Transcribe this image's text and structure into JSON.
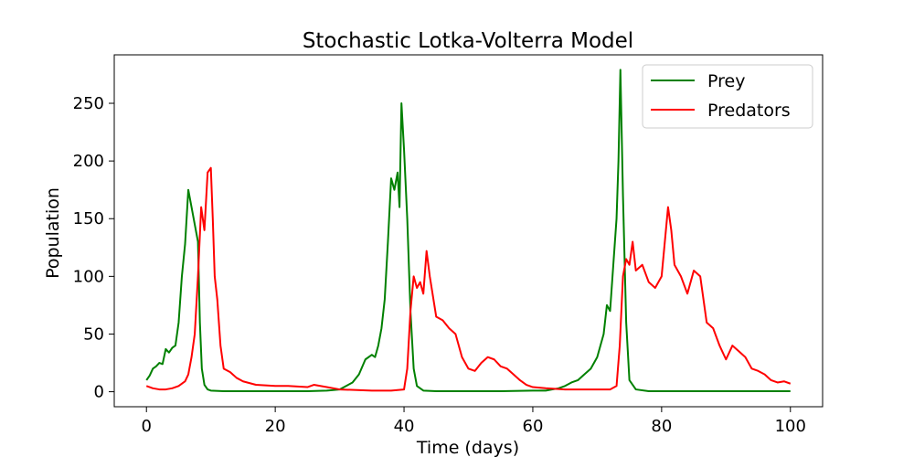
{
  "chart_data": {
    "type": "line",
    "title": "Stochastic Lotka-Volterra Model",
    "xlabel": "Time (days)",
    "ylabel": "Population",
    "xlim": [
      -5,
      105
    ],
    "ylim": [
      -13,
      292
    ],
    "xticks": [
      0,
      20,
      40,
      60,
      80,
      100
    ],
    "yticks": [
      0,
      50,
      100,
      150,
      200,
      250
    ],
    "grid": false,
    "legend_position": "top-right",
    "series": [
      {
        "name": "Prey",
        "color": "#008000",
        "points": [
          [
            0,
            10
          ],
          [
            0.5,
            14
          ],
          [
            1,
            20
          ],
          [
            1.5,
            22
          ],
          [
            2,
            25
          ],
          [
            2.5,
            24
          ],
          [
            3,
            37
          ],
          [
            3.5,
            34
          ],
          [
            4,
            38
          ],
          [
            4.5,
            40
          ],
          [
            5,
            60
          ],
          [
            5.5,
            100
          ],
          [
            6,
            128
          ],
          [
            6.5,
            175
          ],
          [
            7,
            160
          ],
          [
            7.5,
            145
          ],
          [
            8,
            130
          ],
          [
            8.3,
            60
          ],
          [
            8.6,
            20
          ],
          [
            9,
            6
          ],
          [
            9.5,
            2
          ],
          [
            10,
            1
          ],
          [
            12,
            0.5
          ],
          [
            15,
            0.5
          ],
          [
            20,
            0.5
          ],
          [
            25,
            0.5
          ],
          [
            28,
            1
          ],
          [
            30,
            2
          ],
          [
            32,
            8
          ],
          [
            33,
            15
          ],
          [
            34,
            28
          ],
          [
            35,
            32
          ],
          [
            35.5,
            30
          ],
          [
            36,
            40
          ],
          [
            36.5,
            55
          ],
          [
            37,
            80
          ],
          [
            37.5,
            130
          ],
          [
            38,
            185
          ],
          [
            38.5,
            175
          ],
          [
            39,
            190
          ],
          [
            39.3,
            160
          ],
          [
            39.6,
            250
          ],
          [
            40,
            210
          ],
          [
            40.5,
            150
          ],
          [
            41,
            70
          ],
          [
            41.5,
            20
          ],
          [
            42,
            5
          ],
          [
            43,
            1
          ],
          [
            45,
            0.5
          ],
          [
            50,
            0.5
          ],
          [
            55,
            0.5
          ],
          [
            60,
            1
          ],
          [
            62,
            1
          ],
          [
            64,
            3
          ],
          [
            65,
            5
          ],
          [
            66,
            8
          ],
          [
            67,
            10
          ],
          [
            68,
            15
          ],
          [
            69,
            20
          ],
          [
            70,
            30
          ],
          [
            71,
            50
          ],
          [
            71.5,
            75
          ],
          [
            72,
            70
          ],
          [
            72.5,
            110
          ],
          [
            73,
            150
          ],
          [
            73.3,
            200
          ],
          [
            73.6,
            279
          ],
          [
            74,
            170
          ],
          [
            74.5,
            60
          ],
          [
            75,
            10
          ],
          [
            76,
            2
          ],
          [
            78,
            0.5
          ],
          [
            80,
            0.5
          ],
          [
            85,
            0.5
          ],
          [
            90,
            0.5
          ],
          [
            95,
            0.5
          ],
          [
            100,
            0.5
          ]
        ]
      },
      {
        "name": "Predators",
        "color": "#ff0000",
        "points": [
          [
            0,
            5
          ],
          [
            1,
            3
          ],
          [
            2,
            2
          ],
          [
            3,
            2
          ],
          [
            4,
            3
          ],
          [
            5,
            5
          ],
          [
            6,
            9
          ],
          [
            6.5,
            15
          ],
          [
            7,
            30
          ],
          [
            7.5,
            50
          ],
          [
            8,
            100
          ],
          [
            8.5,
            160
          ],
          [
            9,
            140
          ],
          [
            9.5,
            190
          ],
          [
            10,
            194
          ],
          [
            10.3,
            150
          ],
          [
            10.6,
            100
          ],
          [
            11,
            80
          ],
          [
            11.5,
            40
          ],
          [
            12,
            20
          ],
          [
            13,
            17
          ],
          [
            14,
            12
          ],
          [
            15,
            9
          ],
          [
            17,
            6
          ],
          [
            20,
            5
          ],
          [
            22,
            5
          ],
          [
            25,
            4
          ],
          [
            26,
            6
          ],
          [
            28,
            4
          ],
          [
            30,
            2
          ],
          [
            35,
            1
          ],
          [
            38,
            1
          ],
          [
            40,
            2
          ],
          [
            40.5,
            20
          ],
          [
            41,
            70
          ],
          [
            41.5,
            100
          ],
          [
            42,
            90
          ],
          [
            42.5,
            95
          ],
          [
            43,
            85
          ],
          [
            43.5,
            122
          ],
          [
            44,
            100
          ],
          [
            45,
            65
          ],
          [
            46,
            62
          ],
          [
            47,
            55
          ],
          [
            48,
            50
          ],
          [
            49,
            30
          ],
          [
            50,
            20
          ],
          [
            51,
            18
          ],
          [
            52,
            25
          ],
          [
            53,
            30
          ],
          [
            54,
            28
          ],
          [
            55,
            22
          ],
          [
            56,
            20
          ],
          [
            57,
            15
          ],
          [
            58,
            10
          ],
          [
            59,
            6
          ],
          [
            60,
            4
          ],
          [
            62,
            3
          ],
          [
            65,
            2
          ],
          [
            68,
            2
          ],
          [
            70,
            2
          ],
          [
            72,
            2
          ],
          [
            73,
            5
          ],
          [
            73.5,
            40
          ],
          [
            74,
            100
          ],
          [
            74.5,
            115
          ],
          [
            75,
            110
          ],
          [
            75.5,
            130
          ],
          [
            76,
            105
          ],
          [
            77,
            110
          ],
          [
            78,
            95
          ],
          [
            79,
            90
          ],
          [
            80,
            100
          ],
          [
            81,
            160
          ],
          [
            81.5,
            140
          ],
          [
            82,
            110
          ],
          [
            83,
            100
          ],
          [
            84,
            85
          ],
          [
            85,
            105
          ],
          [
            86,
            100
          ],
          [
            87,
            60
          ],
          [
            88,
            55
          ],
          [
            89,
            40
          ],
          [
            90,
            28
          ],
          [
            91,
            40
          ],
          [
            92,
            35
          ],
          [
            93,
            30
          ],
          [
            94,
            20
          ],
          [
            95,
            18
          ],
          [
            96,
            15
          ],
          [
            97,
            10
          ],
          [
            98,
            8
          ],
          [
            99,
            9
          ],
          [
            100,
            7
          ]
        ]
      }
    ]
  }
}
